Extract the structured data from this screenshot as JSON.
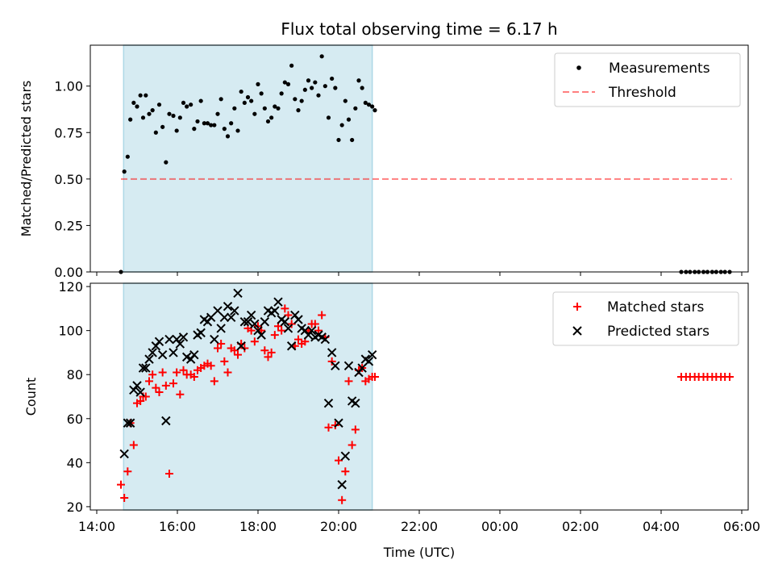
{
  "figure": {
    "title": "Flux total observing time = 6.17 h",
    "xlabel": "Time (UTC)"
  },
  "chart_data": [
    {
      "type": "scatter",
      "ylabel": "Matched/Predicted stars",
      "xlim": [
        "14:00",
        "06:00 (+1 day)"
      ],
      "ylim": [
        0,
        1.22
      ],
      "yticks": [
        "0.00",
        "0.25",
        "0.50",
        "0.75",
        "1.00"
      ],
      "observing_window": [
        "14:40",
        "20:50"
      ],
      "observing_window_color": "#add8e6",
      "legend_position": "upper right",
      "series": [
        {
          "name": "Measurements",
          "marker": "dot",
          "color": "#000000",
          "points": [
            [
              "14:36",
              0.0
            ],
            [
              "14:41",
              0.54
            ],
            [
              "14:46",
              0.62
            ],
            [
              "14:50",
              0.82
            ],
            [
              "14:55",
              0.91
            ],
            [
              "15:00",
              0.89
            ],
            [
              "15:05",
              0.95
            ],
            [
              "15:09",
              0.83
            ],
            [
              "15:13",
              0.95
            ],
            [
              "15:18",
              0.85
            ],
            [
              "15:23",
              0.87
            ],
            [
              "15:28",
              0.75
            ],
            [
              "15:33",
              0.9
            ],
            [
              "15:38",
              0.78
            ],
            [
              "15:43",
              0.59
            ],
            [
              "15:48",
              0.85
            ],
            [
              "15:54",
              0.84
            ],
            [
              "15:59",
              0.76
            ],
            [
              "16:04",
              0.83
            ],
            [
              "16:09",
              0.91
            ],
            [
              "16:14",
              0.89
            ],
            [
              "16:20",
              0.9
            ],
            [
              "16:25",
              0.77
            ],
            [
              "16:30",
              0.81
            ],
            [
              "16:35",
              0.92
            ],
            [
              "16:40",
              0.8
            ],
            [
              "16:45",
              0.8
            ],
            [
              "16:50",
              0.79
            ],
            [
              "16:55",
              0.79
            ],
            [
              "17:00",
              0.85
            ],
            [
              "17:05",
              0.93
            ],
            [
              "17:10",
              0.77
            ],
            [
              "17:15",
              0.73
            ],
            [
              "17:20",
              0.8
            ],
            [
              "17:25",
              0.88
            ],
            [
              "17:30",
              0.76
            ],
            [
              "17:35",
              0.97
            ],
            [
              "17:40",
              0.91
            ],
            [
              "17:45",
              0.94
            ],
            [
              "17:50",
              0.92
            ],
            [
              "17:55",
              0.85
            ],
            [
              "18:00",
              1.01
            ],
            [
              "18:05",
              0.96
            ],
            [
              "18:10",
              0.88
            ],
            [
              "18:15",
              0.81
            ],
            [
              "18:20",
              0.83
            ],
            [
              "18:25",
              0.89
            ],
            [
              "18:30",
              0.88
            ],
            [
              "18:35",
              0.96
            ],
            [
              "18:40",
              1.02
            ],
            [
              "18:45",
              1.01
            ],
            [
              "18:50",
              1.11
            ],
            [
              "18:55",
              0.93
            ],
            [
              "19:00",
              0.87
            ],
            [
              "19:05",
              0.92
            ],
            [
              "19:10",
              0.98
            ],
            [
              "19:15",
              1.03
            ],
            [
              "19:20",
              0.99
            ],
            [
              "19:25",
              1.02
            ],
            [
              "19:30",
              0.95
            ],
            [
              "19:35",
              1.16
            ],
            [
              "19:40",
              1.0
            ],
            [
              "19:45",
              0.83
            ],
            [
              "19:50",
              1.04
            ],
            [
              "19:55",
              0.99
            ],
            [
              "20:00",
              0.71
            ],
            [
              "20:05",
              0.79
            ],
            [
              "20:10",
              0.92
            ],
            [
              "20:15",
              0.82
            ],
            [
              "20:20",
              0.71
            ],
            [
              "20:25",
              0.88
            ],
            [
              "20:30",
              1.03
            ],
            [
              "20:35",
              0.99
            ],
            [
              "20:40",
              0.91
            ],
            [
              "20:45",
              0.9
            ],
            [
              "20:50",
              0.89
            ],
            [
              "20:54",
              0.87
            ],
            [
              "04:30",
              0.0
            ],
            [
              "04:37",
              0.0
            ],
            [
              "04:43",
              0.0
            ],
            [
              "04:50",
              0.0
            ],
            [
              "04:56",
              0.0
            ],
            [
              "05:03",
              0.0
            ],
            [
              "05:09",
              0.0
            ],
            [
              "05:16",
              0.0
            ],
            [
              "05:22",
              0.0
            ],
            [
              "05:29",
              0.0
            ],
            [
              "05:35",
              0.0
            ],
            [
              "05:42",
              0.0
            ]
          ]
        },
        {
          "name": "Threshold",
          "line_style": "dashed",
          "color": "#ff0000",
          "opacity": 0.5,
          "points": [
            [
              "14:36",
              0.5
            ],
            [
              "05:45",
              0.5
            ]
          ]
        }
      ]
    },
    {
      "type": "scatter",
      "ylabel": "Count",
      "xlim": [
        "14:00",
        "06:00 (+1 day)"
      ],
      "ylim": [
        18.5,
        121.5
      ],
      "yticks": [
        "20",
        "40",
        "60",
        "80",
        "100",
        "120"
      ],
      "xticks": [
        "14:00",
        "16:00",
        "18:00",
        "20:00",
        "22:00",
        "00:00",
        "02:00",
        "04:00",
        "06:00"
      ],
      "observing_window": [
        "14:40",
        "20:50"
      ],
      "legend_position": "upper right",
      "series": [
        {
          "name": "Matched stars",
          "marker": "plus",
          "color": "#ff0000",
          "points": [
            [
              "14:36",
              30
            ],
            [
              "14:41",
              24
            ],
            [
              "14:46",
              36
            ],
            [
              "14:50",
              58
            ],
            [
              "14:55",
              48
            ],
            [
              "15:00",
              67
            ],
            [
              "15:05",
              68
            ],
            [
              "15:09",
              70
            ],
            [
              "15:13",
              70
            ],
            [
              "15:18",
              77
            ],
            [
              "15:23",
              80
            ],
            [
              "15:28",
              74
            ],
            [
              "15:33",
              72
            ],
            [
              "15:38",
              81
            ],
            [
              "15:43",
              75
            ],
            [
              "15:48",
              35
            ],
            [
              "15:54",
              76
            ],
            [
              "15:59",
              81
            ],
            [
              "16:04",
              71
            ],
            [
              "16:09",
              82
            ],
            [
              "16:14",
              80
            ],
            [
              "16:20",
              80
            ],
            [
              "16:25",
              79
            ],
            [
              "16:30",
              82
            ],
            [
              "16:35",
              83
            ],
            [
              "16:40",
              84
            ],
            [
              "16:45",
              85
            ],
            [
              "16:50",
              84
            ],
            [
              "16:55",
              77
            ],
            [
              "17:00",
              92
            ],
            [
              "17:05",
              94
            ],
            [
              "17:10",
              86
            ],
            [
              "17:15",
              81
            ],
            [
              "17:20",
              92
            ],
            [
              "17:25",
              91
            ],
            [
              "17:30",
              89
            ],
            [
              "17:35",
              94
            ],
            [
              "17:40",
              92
            ],
            [
              "17:45",
              101
            ],
            [
              "17:50",
              100
            ],
            [
              "17:55",
              95
            ],
            [
              "18:00",
              102
            ],
            [
              "18:05",
              100
            ],
            [
              "18:10",
              91
            ],
            [
              "18:15",
              88
            ],
            [
              "18:20",
              90
            ],
            [
              "18:25",
              98
            ],
            [
              "18:30",
              102
            ],
            [
              "18:35",
              100
            ],
            [
              "18:40",
              110
            ],
            [
              "18:45",
              107
            ],
            [
              "18:50",
              103
            ],
            [
              "18:55",
              93
            ],
            [
              "19:00",
              96
            ],
            [
              "19:05",
              94
            ],
            [
              "19:10",
              95
            ],
            [
              "19:15",
              100
            ],
            [
              "19:20",
              103
            ],
            [
              "19:25",
              103
            ],
            [
              "19:30",
              100
            ],
            [
              "19:35",
              107
            ],
            [
              "19:40",
              97
            ],
            [
              "19:45",
              56
            ],
            [
              "19:50",
              86
            ],
            [
              "19:55",
              57
            ],
            [
              "20:00",
              41
            ],
            [
              "20:05",
              23
            ],
            [
              "20:10",
              36
            ],
            [
              "20:15",
              77
            ],
            [
              "20:20",
              48
            ],
            [
              "20:25",
              55
            ],
            [
              "20:30",
              82
            ],
            [
              "20:35",
              83
            ],
            [
              "20:40",
              77
            ],
            [
              "20:45",
              78
            ],
            [
              "20:50",
              79
            ],
            [
              "20:54",
              79
            ],
            [
              "04:30",
              79
            ],
            [
              "04:37",
              79
            ],
            [
              "04:43",
              79
            ],
            [
              "04:50",
              79
            ],
            [
              "04:56",
              79
            ],
            [
              "05:03",
              79
            ],
            [
              "05:09",
              79
            ],
            [
              "05:16",
              79
            ],
            [
              "05:22",
              79
            ],
            [
              "05:29",
              79
            ],
            [
              "05:35",
              79
            ],
            [
              "05:42",
              79
            ]
          ]
        },
        {
          "name": "Predicted stars",
          "marker": "x",
          "color": "#000000",
          "points": [
            [
              "14:41",
              44
            ],
            [
              "14:46",
              58
            ],
            [
              "14:50",
              58
            ],
            [
              "14:55",
              73
            ],
            [
              "15:00",
              75
            ],
            [
              "15:05",
              72
            ],
            [
              "15:09",
              83
            ],
            [
              "15:13",
              83
            ],
            [
              "15:18",
              87
            ],
            [
              "15:23",
              90
            ],
            [
              "15:28",
              93
            ],
            [
              "15:33",
              95
            ],
            [
              "15:38",
              89
            ],
            [
              "15:43",
              59
            ],
            [
              "15:48",
              96
            ],
            [
              "15:54",
              90
            ],
            [
              "15:59",
              96
            ],
            [
              "16:04",
              94
            ],
            [
              "16:09",
              97
            ],
            [
              "16:14",
              88
            ],
            [
              "16:20",
              87
            ],
            [
              "16:25",
              89
            ],
            [
              "16:30",
              98
            ],
            [
              "16:35",
              99
            ],
            [
              "16:40",
              105
            ],
            [
              "16:45",
              104
            ],
            [
              "16:50",
              106
            ],
            [
              "16:55",
              96
            ],
            [
              "17:00",
              109
            ],
            [
              "17:05",
              101
            ],
            [
              "17:10",
              106
            ],
            [
              "17:15",
              111
            ],
            [
              "17:20",
              106
            ],
            [
              "17:25",
              109
            ],
            [
              "17:30",
              117
            ],
            [
              "17:35",
              93
            ],
            [
              "17:40",
              104
            ],
            [
              "17:45",
              104
            ],
            [
              "17:50",
              107
            ],
            [
              "17:55",
              103
            ],
            [
              "18:00",
              100
            ],
            [
              "18:05",
              98
            ],
            [
              "18:10",
              104
            ],
            [
              "18:15",
              109
            ],
            [
              "18:20",
              108
            ],
            [
              "18:25",
              109
            ],
            [
              "18:30",
              113
            ],
            [
              "18:35",
              105
            ],
            [
              "18:40",
              104
            ],
            [
              "18:45",
              101
            ],
            [
              "18:50",
              93
            ],
            [
              "18:55",
              107
            ],
            [
              "19:00",
              105
            ],
            [
              "19:05",
              101
            ],
            [
              "19:10",
              100
            ],
            [
              "19:15",
              98
            ],
            [
              "19:20",
              100
            ],
            [
              "19:25",
              97
            ],
            [
              "19:30",
              98
            ],
            [
              "19:35",
              97
            ],
            [
              "19:40",
              96
            ],
            [
              "19:45",
              67
            ],
            [
              "19:50",
              90
            ],
            [
              "19:55",
              84
            ],
            [
              "20:00",
              58
            ],
            [
              "20:05",
              30
            ],
            [
              "20:10",
              43
            ],
            [
              "20:15",
              84
            ],
            [
              "20:20",
              68
            ],
            [
              "20:25",
              67
            ],
            [
              "20:30",
              81
            ],
            [
              "20:35",
              83
            ],
            [
              "20:40",
              87
            ],
            [
              "20:45",
              86
            ],
            [
              "20:50",
              89
            ]
          ]
        }
      ]
    }
  ]
}
